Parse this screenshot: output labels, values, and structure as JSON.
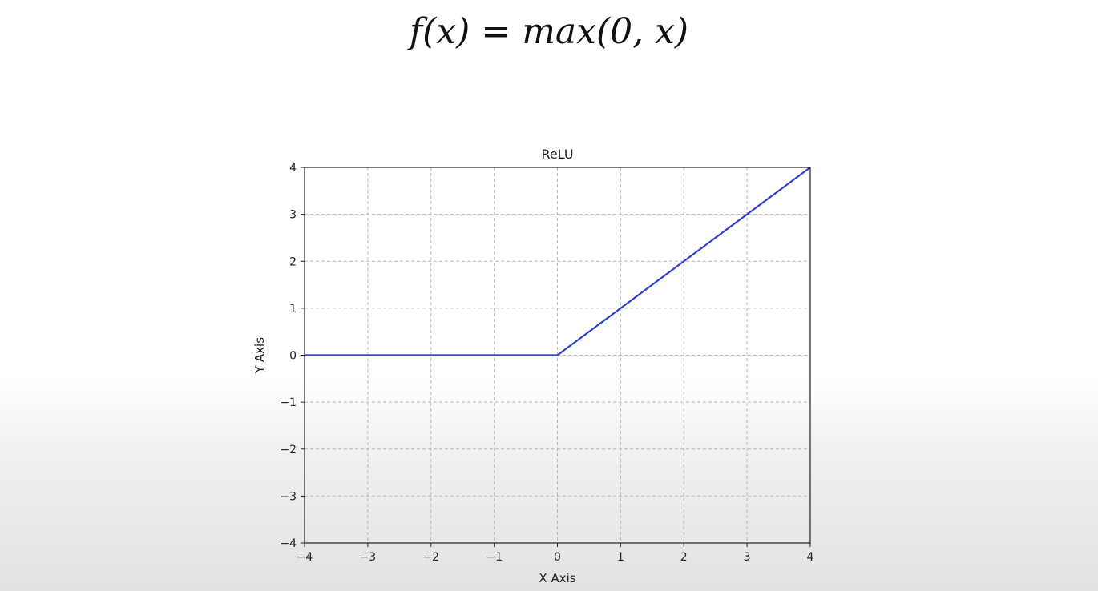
{
  "formula": {
    "lhs": "f(x)",
    "eq": "=",
    "rhs": "max(0, x)"
  },
  "colors": {
    "line": "#2f3fcf",
    "grid": "#b8b8b8",
    "axes": "#222222"
  },
  "chart_data": {
    "type": "line",
    "title": "ReLU",
    "xlabel": "X Axis",
    "ylabel": "Y Axis",
    "xlim": [
      -4,
      4
    ],
    "ylim": [
      -4,
      4
    ],
    "xticks": [
      -4,
      -3,
      -2,
      -1,
      0,
      1,
      2,
      3,
      4
    ],
    "yticks": [
      -4,
      -3,
      -2,
      -1,
      0,
      1,
      2,
      3,
      4
    ],
    "grid": true,
    "grid_style": "dashed",
    "series": [
      {
        "x": [
          -4,
          -3,
          -2,
          -1,
          0,
          1,
          2,
          3,
          4
        ],
        "y": [
          0,
          0,
          0,
          0,
          0,
          1,
          2,
          3,
          4
        ]
      }
    ]
  }
}
